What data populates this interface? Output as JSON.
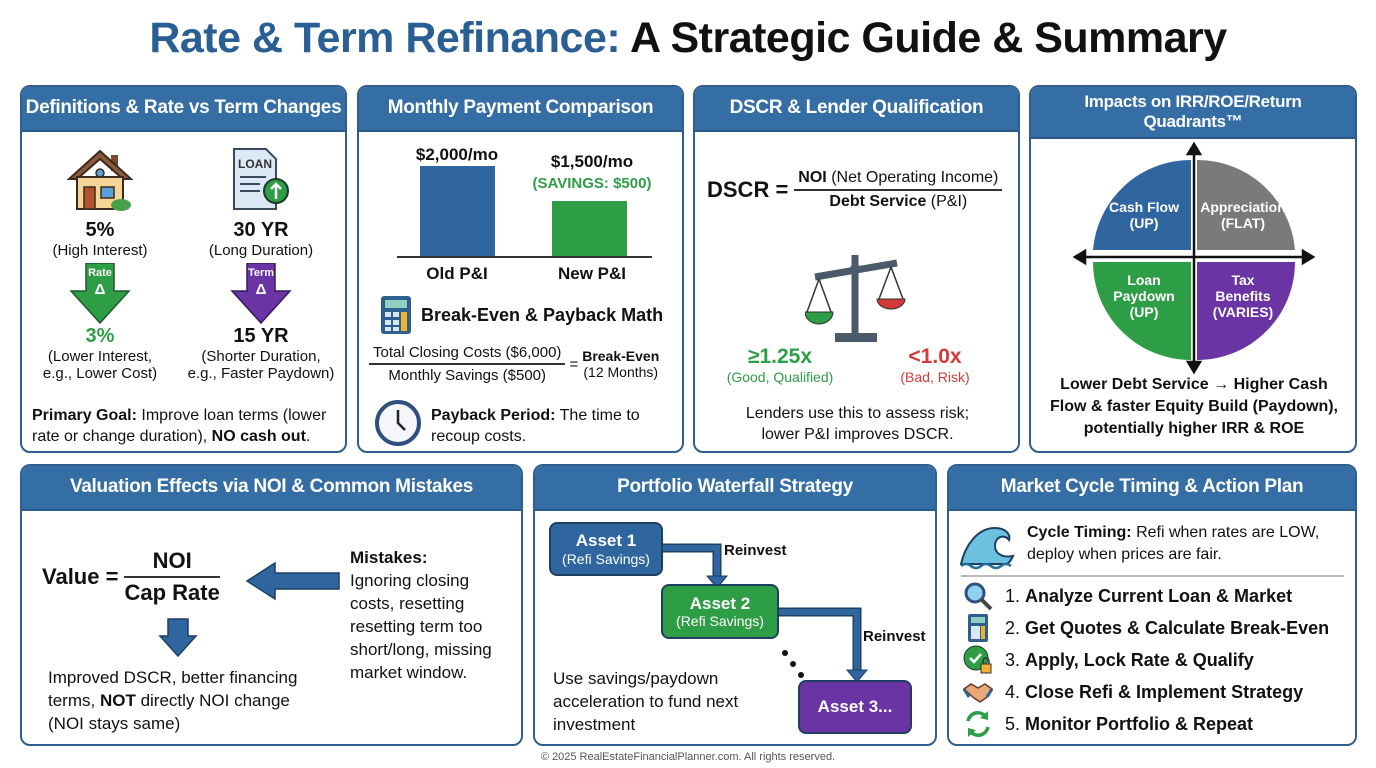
{
  "title": {
    "part1": "Rate & Term Refinance:",
    "part2": " A Strategic Guide & Summary"
  },
  "definitions": {
    "header": "Definitions & Rate vs Term Changes",
    "loan_icon_label": "LOAN",
    "rate": {
      "before": "5%",
      "before_note": "(High Interest)",
      "arrow_label": "Rate",
      "delta": "Δ",
      "after": "3%",
      "after_note1": "(Lower Interest,",
      "after_note2": "e.g., Lower Cost)"
    },
    "term": {
      "before": "30 YR",
      "before_note": "(Long Duration)",
      "arrow_label": "Term",
      "delta": "Δ",
      "after": "15 YR",
      "after_note1": "(Shorter Duration,",
      "after_note2": "e.g., Faster Paydown)"
    },
    "goal_label": "Primary Goal:",
    "goal_text": " Improve loan terms (lower rate or change duration), ",
    "goal_bold": "NO cash out",
    "goal_end": "."
  },
  "payment": {
    "header": "Monthly Payment Comparison",
    "old": {
      "label": "Old P&I",
      "value_label": "$2,000/mo",
      "value": 2000
    },
    "new": {
      "label": "New P&I",
      "value_label": "$1,500/mo",
      "value": 1500,
      "savings": "(SAVINGS: $500)"
    },
    "breakeven_title": "Break-Even & Payback Math",
    "formula_num": "Total Closing Costs ($6,000)",
    "formula_den": "Monthly Savings ($500)",
    "equals": "=",
    "result1": "Break-Even",
    "result2": "(12 Months)",
    "payback_label": "Payback Period:",
    "payback_text": " The time to recoup costs."
  },
  "dscr": {
    "header": "DSCR & Lender Qualification",
    "lhs": "DSCR =",
    "num_bold": "NOI",
    "num_rest": " (Net Operating Income)",
    "den_bold": "Debt Service",
    "den_rest": " (P&I)",
    "good": "≥1.25x",
    "good_note": "(Good, Qualified)",
    "bad": "<1.0x",
    "bad_note": "(Bad, Risk)",
    "note": "Lenders use this to assess risk; lower P&I improves DSCR."
  },
  "quadrants": {
    "header": "Impacts on IRR/ROE/Return Quadrants™",
    "items": [
      {
        "l1": "Cash Flow",
        "l2": "(UP)",
        "color": "#2f66a0"
      },
      {
        "l1": "Appreciation",
        "l2": "(FLAT)",
        "color": "#7a7a7a"
      },
      {
        "l1": "Loan",
        "l2": "Paydown",
        "l3": "(UP)",
        "color": "#2e9e46"
      },
      {
        "l1": "Tax",
        "l2": "Benefits",
        "l3": "(VARIES)",
        "color": "#6a34a4"
      }
    ],
    "summary": "Lower Debt Service → Higher Cash Flow & faster Equity Build (Paydown), potentially higher IRR & ROE"
  },
  "valuation": {
    "header": "Valuation Effects via NOI & Common Mistakes",
    "lhs": "Value =",
    "num": "NOI",
    "den": "Cap Rate",
    "effect1": "Improved DSCR, better financing terms, ",
    "effect_bold": "NOT",
    "effect2": " directly NOI change (NOI stays same)",
    "mistakes_label": "Mistakes:",
    "mistakes_text": "Ignoring closing costs, resetting resetting term too short/long, missing market window."
  },
  "waterfall": {
    "header": "Portfolio Waterfall Strategy",
    "asset1": {
      "name": "Asset 1",
      "sub": "(Refi Savings)"
    },
    "asset2": {
      "name": "Asset 2",
      "sub": "(Refi Savings)"
    },
    "asset3": {
      "name": "Asset 3..."
    },
    "reinvest1": "Reinvest",
    "reinvest2": "Reinvest",
    "note": "Use savings/paydown acceleration to fund next investment"
  },
  "market": {
    "header": "Market Cycle Timing & Action Plan",
    "cycle_label": "Cycle Timing:",
    "cycle_text": " Refi when rates are LOW, deploy when prices are fair.",
    "steps": [
      {
        "num": "1.",
        "text": "Analyze Current Loan & Market",
        "icon": "magnifier-icon"
      },
      {
        "num": "2.",
        "text": "Get Quotes & Calculate Break-Even",
        "icon": "calculator-icon"
      },
      {
        "num": "3.",
        "text": "Apply, Lock Rate & Qualify",
        "icon": "check-lock-icon"
      },
      {
        "num": "4.",
        "text": "Close Refi & Implement Strategy",
        "icon": "handshake-icon"
      },
      {
        "num": "5.",
        "text": "Monitor Portfolio & Repeat",
        "icon": "refresh-icon"
      }
    ]
  },
  "footer": "© 2025 RealEstateFinancialPlanner.com. All rights reserved."
}
